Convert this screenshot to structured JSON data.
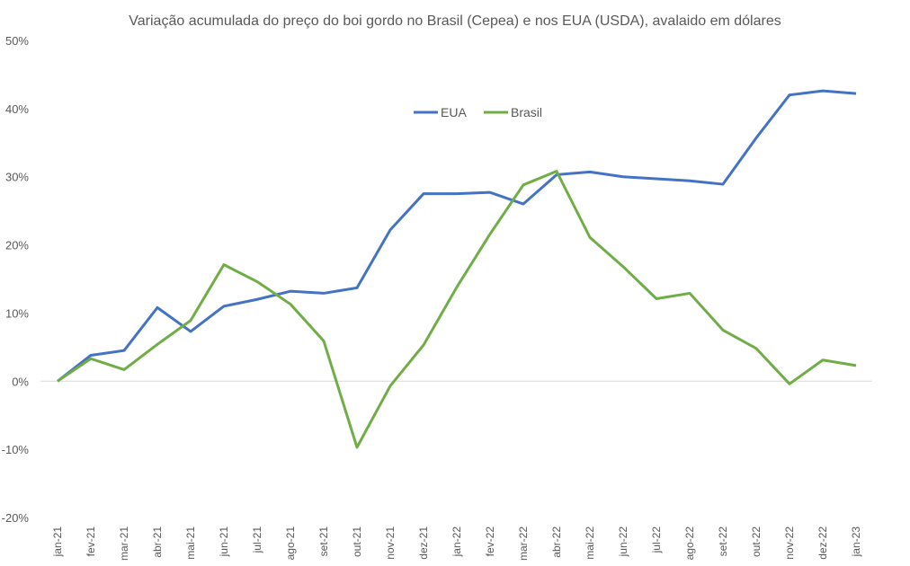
{
  "chart_data": {
    "type": "line",
    "title": "Variação acumulada do preço do boi gordo no Brasil (Cepea) e nos EUA (USDA), avalaido em dólares",
    "xlabel": "",
    "ylabel": "",
    "ylim": [
      -20,
      50
    ],
    "yticks": [
      -20,
      -10,
      0,
      10,
      20,
      30,
      40,
      50
    ],
    "ytick_labels": [
      "-20%",
      "-10%",
      "0%",
      "10%",
      "20%",
      "30%",
      "40%",
      "50%"
    ],
    "grid": false,
    "legend_position": "top-center",
    "categories": [
      "jan-21",
      "fev-21",
      "mar-21",
      "abr-21",
      "mai-21",
      "jun-21",
      "jul-21",
      "ago-21",
      "set-21",
      "out-21",
      "nov-21",
      "dez-21",
      "jan-22",
      "fev-22",
      "mar-22",
      "abr-22",
      "mai-22",
      "jun-22",
      "jul-22",
      "ago-22",
      "set-22",
      "out-22",
      "nov-22",
      "dez-22",
      "jan-23"
    ],
    "series": [
      {
        "name": "EUA",
        "color": "#4472C4",
        "values": [
          0,
          3.8,
          4.5,
          10.8,
          7.3,
          11.0,
          12.0,
          13.2,
          12.9,
          13.7,
          22.2,
          27.5,
          27.5,
          27.7,
          26.0,
          30.3,
          30.7,
          30.0,
          29.7,
          29.4,
          28.9,
          35.7,
          42.0,
          42.6,
          42.2
        ]
      },
      {
        "name": "Brasil",
        "color": "#70AD47",
        "values": [
          0,
          3.3,
          1.7,
          5.4,
          8.9,
          17.1,
          14.6,
          11.3,
          5.9,
          -9.7,
          -0.7,
          5.3,
          13.8,
          21.6,
          28.8,
          30.8,
          21.1,
          16.8,
          12.1,
          12.9,
          7.5,
          4.8,
          -0.4,
          3.1,
          2.3
        ]
      }
    ]
  }
}
